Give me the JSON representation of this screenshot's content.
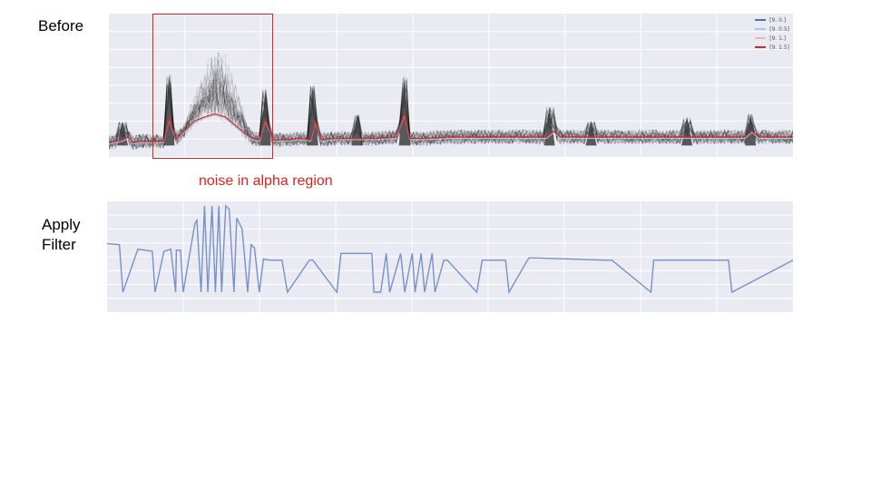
{
  "labels": {
    "before": "Before",
    "apply_filter": "Apply\nFilter",
    "annotation": "noise in alpha region"
  },
  "colors": {
    "background": "#eaeaf2",
    "grid": "#ffffff",
    "trace": "#000000",
    "series_0": "#4c72b0",
    "series_05": "#a9c4ea",
    "series_1": "#e6b8b3",
    "series_15": "#d62728",
    "filtered": "#7891c9",
    "annotation": "#e3211c"
  },
  "chart_data": [
    {
      "type": "line",
      "legend": {
        "placement": "top-right",
        "entries": [
          {
            "name": "[9. 0.]",
            "color": "#4c72b0"
          },
          {
            "name": "[9. 0.5]",
            "color": "#a9c4ea"
          },
          {
            "name": "[9. 1.]",
            "color": "#e6b8b3"
          },
          {
            "name": "[9. 1.5]",
            "color": "#d62728"
          }
        ]
      },
      "grid": true,
      "ylim": [
        0,
        100
      ],
      "xlim": [
        0,
        100
      ],
      "mean_trace": {
        "x": [
          0,
          2,
          2.8,
          3.5,
          4.5,
          6.5,
          8,
          8.8,
          9.8,
          11,
          12.5,
          14,
          15.5,
          17,
          18.5,
          20,
          21,
          22,
          22.9,
          24,
          26,
          28,
          29.5,
          30.2,
          31,
          33,
          36,
          39,
          42,
          43.2,
          44,
          46,
          50,
          55,
          60,
          64,
          65,
          66,
          70,
          76,
          84,
          90,
          93,
          94,
          95,
          98,
          100
        ],
        "y": [
          10,
          12,
          14,
          10,
          11,
          11,
          11,
          27,
          12,
          18,
          25,
          28,
          30,
          28,
          22,
          16,
          13,
          12,
          26,
          12,
          12,
          13,
          12,
          25,
          12,
          13,
          13,
          13,
          14,
          30,
          13,
          13,
          14,
          14,
          14,
          14,
          18,
          14,
          14,
          14,
          14,
          14,
          14,
          18,
          14,
          14,
          14
        ]
      },
      "spikes": [
        {
          "x": 2,
          "y": 25
        },
        {
          "x": 8.8,
          "y": 58
        },
        {
          "x": 22.9,
          "y": 48
        },
        {
          "x": 29.8,
          "y": 50
        },
        {
          "x": 36.3,
          "y": 30
        },
        {
          "x": 43.2,
          "y": 56
        },
        {
          "x": 64.4,
          "y": 35
        },
        {
          "x": 70.5,
          "y": 25
        },
        {
          "x": 84.5,
          "y": 28
        },
        {
          "x": 93.8,
          "y": 30
        }
      ],
      "noise_band": {
        "x_start": 11,
        "x_end": 21,
        "y_peak": 72
      }
    },
    {
      "type": "line",
      "grid": true,
      "ylim": [
        0,
        100
      ],
      "xlim": [
        0,
        100
      ],
      "series": [
        {
          "values_x": [
            0,
            1.8,
            2.3,
            4.5,
            6.6,
            7,
            8.3,
            9.3,
            10,
            10.1,
            10.7,
            11.1,
            12.8,
            13.1,
            13.7,
            14.2,
            14.7,
            15.3,
            15.8,
            16.3,
            16.7,
            17.3,
            17.8,
            18.5,
            18.9,
            19.7,
            20.5,
            21,
            21.5,
            22.2,
            22.8,
            23.7,
            25.5,
            26.3,
            29.5,
            30,
            33.5,
            34.1,
            38.6,
            38.9,
            39.9,
            40.7,
            41.2,
            42.8,
            43.4,
            44.5,
            44.9,
            45.8,
            46.3,
            47.4,
            47.8,
            49.1,
            49.6,
            53.9,
            54.7,
            58.1,
            58.6,
            61.5,
            62.3,
            72.6,
            73.6,
            79.3,
            79.7,
            90.6,
            91.1,
            100
          ],
          "values_y": [
            62,
            61,
            18,
            57,
            55,
            18,
            55,
            57,
            18,
            56,
            56,
            18,
            80,
            83,
            18,
            96,
            18,
            96,
            18,
            96,
            18,
            96,
            93,
            18,
            85,
            75,
            18,
            61,
            58,
            18,
            48,
            47,
            47,
            18,
            47,
            47,
            18,
            53,
            53,
            18,
            18,
            53,
            18,
            53,
            18,
            53,
            18,
            53,
            18,
            53,
            18,
            47,
            47,
            18,
            47,
            47,
            18,
            49,
            49,
            47,
            47,
            18,
            47,
            47,
            18,
            47
          ]
        }
      ]
    }
  ]
}
